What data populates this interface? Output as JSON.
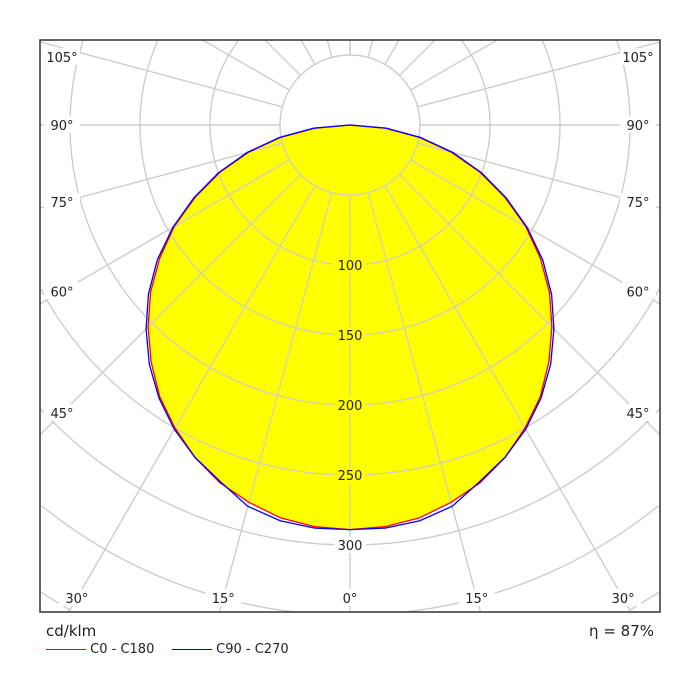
{
  "chart_data": {
    "type": "polar",
    "unit_label": "cd/klm",
    "efficiency_label": "η = 87%",
    "radial_ticks": [
      100,
      150,
      200,
      250,
      300
    ],
    "radial_grid": [
      50,
      100,
      150,
      200,
      250,
      300,
      350,
      400,
      450,
      500
    ],
    "angle_grid_step_deg": 15,
    "angle_labels": [
      {
        "angle": 105,
        "text": "105°"
      },
      {
        "angle": 90,
        "text": "90°"
      },
      {
        "angle": 75,
        "text": "75°"
      },
      {
        "angle": 60,
        "text": "60°"
      },
      {
        "angle": 45,
        "text": "45°"
      },
      {
        "angle": 30,
        "text": "30°"
      },
      {
        "angle": 15,
        "text": "15°"
      },
      {
        "angle": 0,
        "text": "0°"
      }
    ],
    "angles_deg": [
      0,
      5,
      10,
      15,
      20,
      25,
      30,
      35,
      40,
      45,
      50,
      55,
      60,
      65,
      70,
      75,
      80,
      85,
      90
    ],
    "series": [
      {
        "name": "C0 - C180",
        "color": "#ff0000",
        "values": [
          289,
          288,
          285,
          279,
          272,
          262,
          250,
          237,
          221,
          204,
          186,
          166,
          145,
          122,
          99,
          75,
          50,
          25,
          0
        ]
      },
      {
        "name": "C90 - C270",
        "color": "#0000ff",
        "values": [
          289,
          289,
          287,
          282,
          271,
          262,
          251,
          238,
          223,
          206,
          188,
          168,
          146,
          123,
          100,
          76,
          51,
          26,
          0
        ]
      }
    ],
    "fill_color": "#ffff00",
    "grid_color": "#cccccc"
  }
}
